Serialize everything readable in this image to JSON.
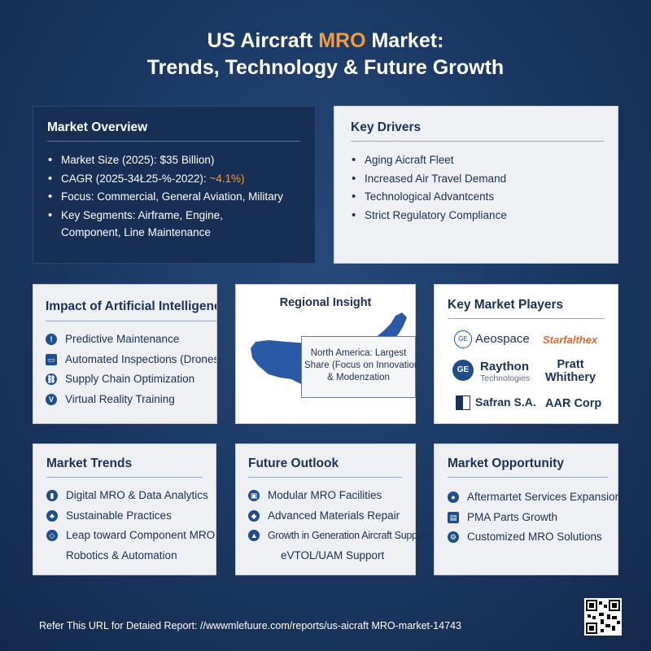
{
  "title": {
    "line1_prefix": "US Aircraft ",
    "line1_accent": "MRO",
    "line1_suffix": " Market:",
    "line2": "Trends, Technology & Future Growth"
  },
  "market_overview": {
    "heading": "Market Overview",
    "items": [
      "Market Size (2025): $35 Billion)",
      "Focus: Commercial, General Aviation, Military",
      "Key Segments: Airframe, Engine,"
    ],
    "cagr_prefix": "CAGR (2025-34Ł25-%-2022): ",
    "cagr_value": "~4.1%)",
    "segments_continued": "Component, Line Maintenance"
  },
  "key_drivers": {
    "heading": "Key Drivers",
    "items": [
      "Aging Aicraft Fleet",
      "Increased Air Travel Demand",
      "Technological Advantcents",
      "Strict Regulatory Compliance"
    ]
  },
  "ai_impact": {
    "heading": "Impact of Artificial Intelligence",
    "items": [
      "Predictive Maintenance",
      "Automated Inspections (Drones)",
      "Supply Chain Optimization",
      "Virtual Reality Training"
    ]
  },
  "regional": {
    "heading": "Regional Insight",
    "callout_line1": "North America: Largest",
    "callout_line2": "Share (Focus on Innovation",
    "callout_line3": "& Modenzation"
  },
  "players": {
    "heading": "Key Market Players",
    "aeospace": "Aeospace",
    "starfalthex": "Starfalthex",
    "raython": "Raython",
    "raython_sub": "Technologies",
    "pratt": "Pratt",
    "whithery": "Whithery",
    "safran": "Safran S.A.",
    "aar": "AAR Corp",
    "ge_mark": "GE"
  },
  "trends": {
    "heading": "Market Trends",
    "items": [
      "Digital MRO & Data Analytics",
      "Sustainable Practices",
      "Leap toward Component MRO"
    ],
    "continued": "Robotics & Automation"
  },
  "outlook": {
    "heading": "Future Outlook",
    "items": [
      "Modular MRO Facilities",
      "Advanced Materials Repair",
      "Growth in Generation Aircraft Support"
    ],
    "continued": "eVTOL/UAM Support"
  },
  "opportunity": {
    "heading": "Market Opportunity",
    "items": [
      "Aftermartet Services Expansion",
      "PMA Parts Growth",
      "Customized MRO Solutions"
    ]
  },
  "footer": {
    "text": "Refer This URL for Detaied Report: //wwwmlefuure.com/reports/us-aicraft MRO-market-14743"
  },
  "colors": {
    "background": "#1c3a66",
    "accent": "#f39c38",
    "dark_card": "#172f55",
    "light_card": "#eef0f3",
    "map_blue": "#2a5aa6"
  }
}
